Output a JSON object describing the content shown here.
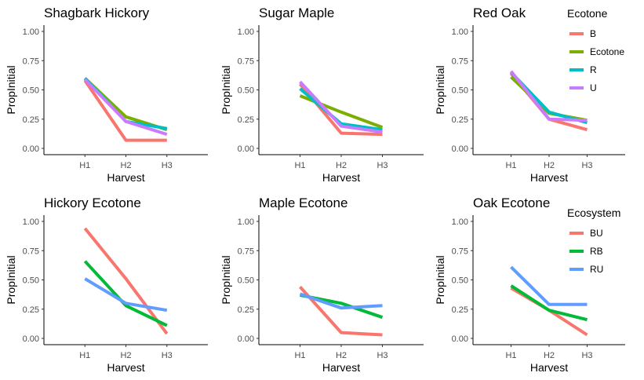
{
  "chart_data": [
    {
      "type": "line",
      "title": "Shagbark Hickory",
      "xlabel": "Harvest",
      "ylabel": "PropInitial",
      "categories": [
        "H1",
        "H2",
        "H3"
      ],
      "ylim": [
        0,
        1
      ],
      "yticks": [
        "0.00",
        "0.25",
        "0.50",
        "0.75",
        "1.00"
      ],
      "grid": false,
      "series": [
        {
          "name": "B",
          "color": "#F8766D",
          "values": [
            0.58,
            0.07,
            0.07
          ]
        },
        {
          "name": "Ecotone",
          "color": "#7CAE00",
          "values": [
            0.6,
            0.27,
            0.16
          ]
        },
        {
          "name": "R",
          "color": "#00BFC4",
          "values": [
            0.6,
            0.23,
            0.17
          ]
        },
        {
          "name": "U",
          "color": "#C77CFF",
          "values": [
            0.59,
            0.23,
            0.12
          ]
        }
      ]
    },
    {
      "type": "line",
      "title": "Sugar Maple",
      "xlabel": "Harvest",
      "ylabel": "PropInitial",
      "categories": [
        "H1",
        "H2",
        "H3"
      ],
      "ylim": [
        0,
        1
      ],
      "yticks": [
        "0.00",
        "0.25",
        "0.50",
        "0.75",
        "1.00"
      ],
      "grid": false,
      "series": [
        {
          "name": "B",
          "color": "#F8766D",
          "values": [
            0.55,
            0.13,
            0.12
          ]
        },
        {
          "name": "Ecotone",
          "color": "#7CAE00",
          "values": [
            0.45,
            0.31,
            0.18
          ]
        },
        {
          "name": "R",
          "color": "#00BFC4",
          "values": [
            0.51,
            0.21,
            0.16
          ]
        },
        {
          "name": "U",
          "color": "#C77CFF",
          "values": [
            0.57,
            0.19,
            0.14
          ]
        }
      ]
    },
    {
      "type": "line",
      "title": "Red Oak",
      "xlabel": "Harvest",
      "ylabel": "PropInitial",
      "categories": [
        "H1",
        "H2",
        "H3"
      ],
      "ylim": [
        0,
        1
      ],
      "yticks": [
        "0.00",
        "0.25",
        "0.50",
        "0.75",
        "1.00"
      ],
      "grid": false,
      "series": [
        {
          "name": "B",
          "color": "#F8766D",
          "values": [
            0.64,
            0.25,
            0.16
          ]
        },
        {
          "name": "Ecotone",
          "color": "#7CAE00",
          "values": [
            0.61,
            0.3,
            0.24
          ]
        },
        {
          "name": "R",
          "color": "#00BFC4",
          "values": [
            0.65,
            0.31,
            0.22
          ]
        },
        {
          "name": "U",
          "color": "#C77CFF",
          "values": [
            0.66,
            0.25,
            0.24
          ]
        }
      ]
    },
    {
      "type": "line",
      "title": "Hickory Ecotone",
      "xlabel": "Harvest",
      "ylabel": "PropInitial",
      "categories": [
        "H1",
        "H2",
        "H3"
      ],
      "ylim": [
        0,
        1
      ],
      "yticks": [
        "0.00",
        "0.25",
        "0.50",
        "0.75",
        "1.00"
      ],
      "grid": false,
      "series": [
        {
          "name": "BU",
          "color": "#F8766D",
          "values": [
            0.94,
            0.51,
            0.04
          ]
        },
        {
          "name": "RB",
          "color": "#00BA38",
          "values": [
            0.66,
            0.28,
            0.11
          ]
        },
        {
          "name": "RU",
          "color": "#619CFF",
          "values": [
            0.51,
            0.3,
            0.24
          ]
        }
      ]
    },
    {
      "type": "line",
      "title": "Maple Ecotone",
      "xlabel": "Harvest",
      "ylabel": "PropInitial",
      "categories": [
        "H1",
        "H2",
        "H3"
      ],
      "ylim": [
        0,
        1
      ],
      "yticks": [
        "0.00",
        "0.25",
        "0.50",
        "0.75",
        "1.00"
      ],
      "grid": false,
      "series": [
        {
          "name": "BU",
          "color": "#F8766D",
          "values": [
            0.44,
            0.05,
            0.03
          ]
        },
        {
          "name": "RB",
          "color": "#00BA38",
          "values": [
            0.37,
            0.3,
            0.18
          ]
        },
        {
          "name": "RU",
          "color": "#619CFF",
          "values": [
            0.38,
            0.26,
            0.28
          ]
        }
      ]
    },
    {
      "type": "line",
      "title": "Oak Ecotone",
      "xlabel": "Harvest",
      "ylabel": "PropInitial",
      "categories": [
        "H1",
        "H2",
        "H3"
      ],
      "ylim": [
        0,
        1
      ],
      "yticks": [
        "0.00",
        "0.25",
        "0.50",
        "0.75",
        "1.00"
      ],
      "grid": false,
      "series": [
        {
          "name": "BU",
          "color": "#F8766D",
          "values": [
            0.43,
            0.24,
            0.03
          ]
        },
        {
          "name": "RB",
          "color": "#00BA38",
          "values": [
            0.45,
            0.24,
            0.16
          ]
        },
        {
          "name": "RU",
          "color": "#619CFF",
          "values": [
            0.61,
            0.29,
            0.29
          ]
        }
      ]
    }
  ],
  "legends": [
    {
      "title": "Ecotone",
      "placement": "top-right",
      "items": [
        {
          "label": "B",
          "color": "#F8766D"
        },
        {
          "label": "Ecotone",
          "color": "#7CAE00"
        },
        {
          "label": "R",
          "color": "#00BFC4"
        },
        {
          "label": "U",
          "color": "#C77CFF"
        }
      ]
    },
    {
      "title": "Ecosystem",
      "placement": "bottom-right",
      "items": [
        {
          "label": "BU",
          "color": "#F8766D"
        },
        {
          "label": "RB",
          "color": "#00BA38"
        },
        {
          "label": "RU",
          "color": "#619CFF"
        }
      ]
    }
  ]
}
